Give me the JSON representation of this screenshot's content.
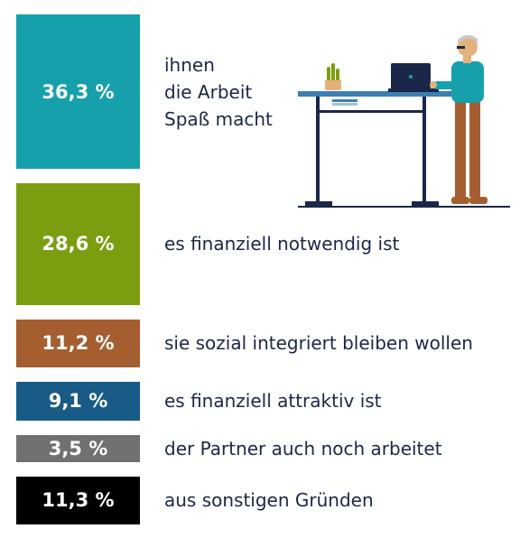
{
  "chart_data": {
    "type": "bar",
    "orientation": "stacked-horizontal-blocks",
    "categories": [
      "ihnen\ndie Arbeit\nSpaß macht",
      "es finanziell notwendig ist",
      "sie sozial integriert bleiben wollen",
      "es finanziell attraktiv ist",
      "der Partner auch noch arbeitet",
      "aus sonstigen Gründen"
    ],
    "values": [
      36.3,
      28.6,
      11.2,
      9.1,
      3.5,
      11.3
    ],
    "value_labels": [
      "36,3 %",
      "28,6 %",
      "11,2 %",
      "9,1 %",
      "3,5 %",
      "11,3 %"
    ],
    "colors": [
      "#16a0ab",
      "#7b9d10",
      "#a45e30",
      "#185b86",
      "#707070",
      "#000000"
    ]
  }
}
